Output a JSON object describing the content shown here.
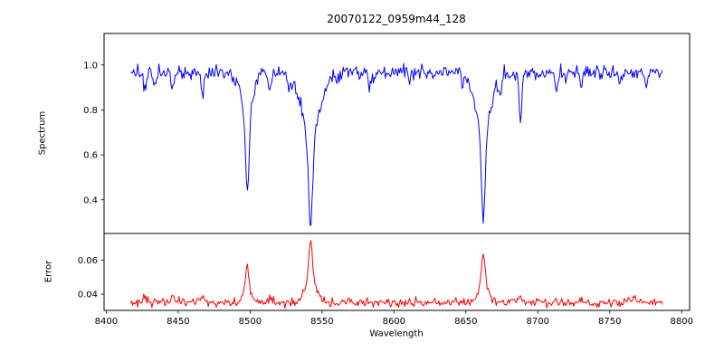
{
  "figure": {
    "background": "#ffffff",
    "axis_color": "#000000"
  },
  "chart_data": {
    "type": "line",
    "title": "20070122_0959m44_128",
    "xlabel": "Wavelength",
    "grid": false,
    "legend": "none",
    "x_range": [
      8417,
      8787
    ],
    "xlim": [
      8398.5,
      8805.5
    ],
    "xticks": [
      "8400",
      "8450",
      "8500",
      "8550",
      "8600",
      "8650",
      "8700",
      "8750",
      "8800"
    ],
    "sample_step": 0.7,
    "noise_seed": 20070122,
    "subplots": [
      {
        "name": "spectrum",
        "ylabel": "Spectrum",
        "color": "#0000ff",
        "ylim": [
          0.25,
          1.14
        ],
        "yticks": [
          "0.4",
          "0.6",
          "0.8",
          "1.0"
        ],
        "base": 0.965,
        "noise_sigma": 0.016,
        "sign": -1,
        "feature_kind": "absorption_lines",
        "features": [
          {
            "center": 8498.0,
            "amp": 0.545,
            "core_width": 1.1,
            "wing_width": 3.5
          },
          {
            "center": 8542.1,
            "amp": 0.67,
            "core_width": 1.5,
            "wing_width": 6.5
          },
          {
            "center": 8662.1,
            "amp": 0.65,
            "core_width": 1.3,
            "wing_width": 5.5
          },
          {
            "center": 8427.0,
            "amp": 0.09,
            "core_width": 0.9,
            "wing_width": 0.9
          },
          {
            "center": 8434.0,
            "amp": 0.07,
            "core_width": 0.8,
            "wing_width": 0.8
          },
          {
            "center": 8446.0,
            "amp": 0.08,
            "core_width": 0.9,
            "wing_width": 0.9
          },
          {
            "center": 8467.0,
            "amp": 0.09,
            "core_width": 1.0,
            "wing_width": 1.0
          },
          {
            "center": 8489.0,
            "amp": 0.05,
            "core_width": 0.8,
            "wing_width": 0.8
          },
          {
            "center": 8514.0,
            "amp": 0.09,
            "core_width": 0.9,
            "wing_width": 0.9
          },
          {
            "center": 8527.0,
            "amp": 0.06,
            "core_width": 0.8,
            "wing_width": 0.8
          },
          {
            "center": 8560.0,
            "amp": 0.05,
            "core_width": 0.8,
            "wing_width": 0.8
          },
          {
            "center": 8583.0,
            "amp": 0.06,
            "core_width": 0.9,
            "wing_width": 0.9
          },
          {
            "center": 8611.0,
            "amp": 0.05,
            "core_width": 0.8,
            "wing_width": 0.8
          },
          {
            "center": 8648.0,
            "amp": 0.05,
            "core_width": 0.8,
            "wing_width": 0.8
          },
          {
            "center": 8674.0,
            "amp": 0.08,
            "core_width": 0.8,
            "wing_width": 0.8
          },
          {
            "center": 8688.0,
            "amp": 0.21,
            "core_width": 1.0,
            "wing_width": 1.0
          },
          {
            "center": 8713.0,
            "amp": 0.08,
            "core_width": 0.9,
            "wing_width": 0.9
          },
          {
            "center": 8730.0,
            "amp": 0.07,
            "core_width": 0.8,
            "wing_width": 0.8
          },
          {
            "center": 8757.0,
            "amp": 0.06,
            "core_width": 0.8,
            "wing_width": 0.8
          },
          {
            "center": 8775.0,
            "amp": 0.06,
            "core_width": 0.8,
            "wing_width": 0.8
          }
        ]
      },
      {
        "name": "error",
        "ylabel": "Error",
        "color": "#ff0000",
        "ylim": [
          0.0305,
          0.0755
        ],
        "yticks": [
          "0.04",
          "0.06"
        ],
        "base": 0.0352,
        "noise_sigma": 0.0012,
        "sign": 1,
        "feature_kind": "error_peaks",
        "features": [
          {
            "center": 8498.0,
            "amp": 0.021,
            "core_width": 1.0,
            "wing_width": 2.5
          },
          {
            "center": 8542.1,
            "amp": 0.0365,
            "core_width": 1.2,
            "wing_width": 3.5
          },
          {
            "center": 8662.1,
            "amp": 0.03,
            "core_width": 1.1,
            "wing_width": 3.0
          },
          {
            "center": 8427.0,
            "amp": 0.004,
            "core_width": 1.0,
            "wing_width": 2.0
          },
          {
            "center": 8446.0,
            "amp": 0.003,
            "core_width": 1.0,
            "wing_width": 2.0
          },
          {
            "center": 8466.0,
            "amp": 0.004,
            "core_width": 1.0,
            "wing_width": 2.0
          },
          {
            "center": 8514.0,
            "amp": 0.002,
            "core_width": 1.0,
            "wing_width": 2.0
          },
          {
            "center": 8688.0,
            "amp": 0.003,
            "core_width": 1.0,
            "wing_width": 2.0
          },
          {
            "center": 8730.0,
            "amp": 0.002,
            "core_width": 1.0,
            "wing_width": 2.0
          },
          {
            "center": 8767.0,
            "amp": 0.003,
            "core_width": 1.0,
            "wing_width": 2.0
          }
        ]
      }
    ]
  }
}
